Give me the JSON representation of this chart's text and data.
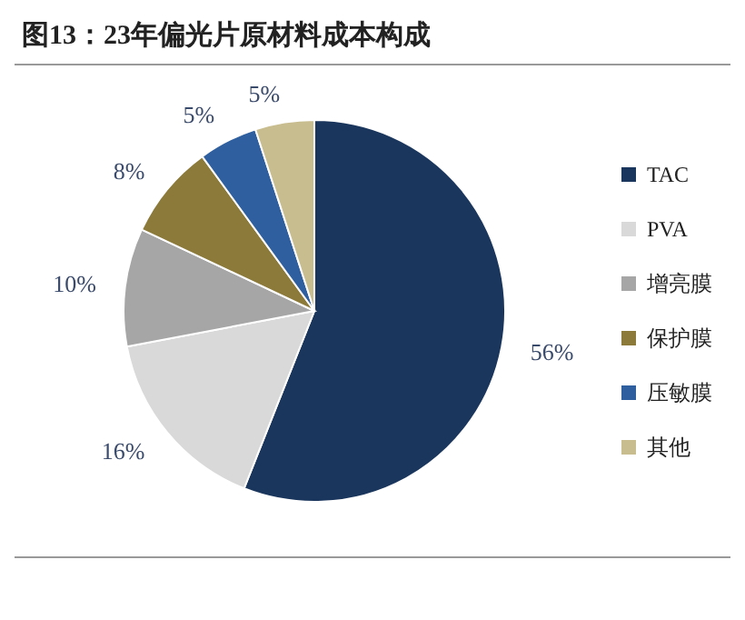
{
  "chart_data": {
    "type": "pie",
    "title": "图13：23年偏光片原材料成本构成",
    "categories": [
      "TAC",
      "PVA",
      "增亮膜",
      "保护膜",
      "压敏膜",
      "其他"
    ],
    "values": [
      56,
      16,
      10,
      8,
      5,
      5
    ],
    "colors": [
      "#1b365d",
      "#d9d9d9",
      "#a6a6a6",
      "#8b7a3a",
      "#2f5f9e",
      "#c8bd8f"
    ],
    "value_labels": [
      "56%",
      "16%",
      "10%",
      "8%",
      "5%",
      "5%"
    ],
    "legend": "right"
  }
}
